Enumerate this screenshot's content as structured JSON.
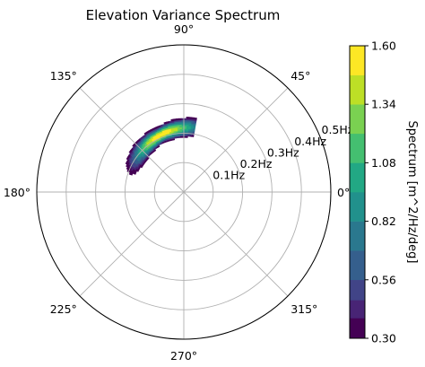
{
  "chart_data": {
    "type": "heatmap",
    "projection": "polar",
    "title": "Elevation Variance Spectrum",
    "theta_ticks": [
      {
        "deg": 0,
        "label": "0°"
      },
      {
        "deg": 45,
        "label": "45°"
      },
      {
        "deg": 90,
        "label": "90°"
      },
      {
        "deg": 135,
        "label": "135°"
      },
      {
        "deg": 180,
        "label": "180°"
      },
      {
        "deg": 225,
        "label": "225°"
      },
      {
        "deg": 270,
        "label": "270°"
      },
      {
        "deg": 315,
        "label": "315°"
      }
    ],
    "r_ticks": [
      {
        "value": 0.1,
        "label": "0.1Hz"
      },
      {
        "value": 0.2,
        "label": "0.2Hz"
      },
      {
        "value": 0.3,
        "label": "0.3Hz"
      },
      {
        "value": 0.4,
        "label": "0.4Hz"
      },
      {
        "value": 0.5,
        "label": "0.5Hz"
      }
    ],
    "r_range": [
      0,
      0.5
    ],
    "r_label_angle_deg": 22.5,
    "grid": true,
    "colormap": "viridis",
    "color_levels": [
      0.3,
      0.39,
      0.47,
      0.56,
      0.69,
      0.82,
      0.95,
      1.08,
      1.21,
      1.34,
      1.47,
      1.6
    ],
    "colorbar": {
      "label": "Spectrum [m^2/Hz/deg]",
      "range": [
        0.3,
        1.6
      ],
      "ticks": [
        {
          "value": 0.3,
          "label": "0.30"
        },
        {
          "value": 0.56,
          "label": "0.56"
        },
        {
          "value": 0.82,
          "label": "0.82"
        },
        {
          "value": 1.08,
          "label": "1.08"
        },
        {
          "value": 1.34,
          "label": "1.34"
        },
        {
          "value": 1.6,
          "label": "1.60"
        }
      ]
    },
    "spectrum": {
      "peak_frequency_hz": 0.21,
      "peak_direction_deg": 112,
      "peak_value": 1.6,
      "direction_extent_deg": [
        80,
        165
      ],
      "frequency_extent_hz": [
        0.15,
        0.29
      ],
      "threshold": 0.3
    }
  }
}
